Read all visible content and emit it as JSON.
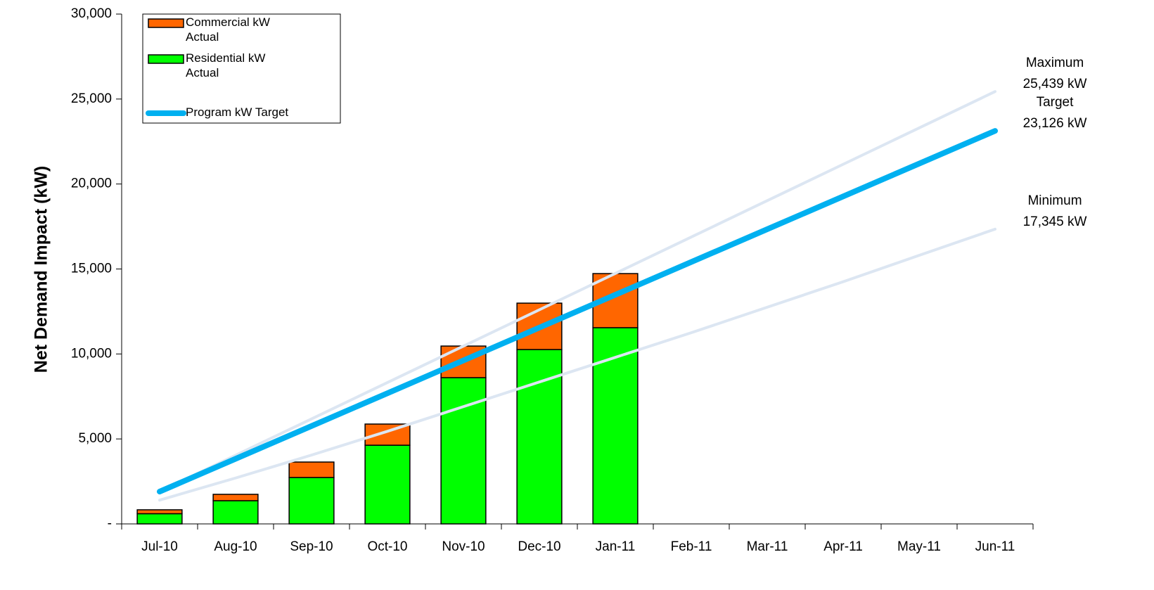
{
  "chart_data": {
    "type": "stacked_bar_line",
    "y_label": "Net Demand Impact (kW)",
    "categories": [
      "Jul-10",
      "Aug-10",
      "Sep-10",
      "Oct-10",
      "Nov-10",
      "Dec-10",
      "Jan-11",
      "Feb-11",
      "Mar-11",
      "Apr-11",
      "May-11",
      "Jun-11"
    ],
    "ylim": [
      0,
      30000
    ],
    "yticks": [
      {
        "value": 0,
        "label": "-"
      },
      {
        "value": 5000,
        "label": "5,000"
      },
      {
        "value": 10000,
        "label": "10,000"
      },
      {
        "value": 15000,
        "label": "15,000"
      },
      {
        "value": 20000,
        "label": "20,000"
      },
      {
        "value": 25000,
        "label": "25,000"
      },
      {
        "value": 30000,
        "label": "30,000"
      }
    ],
    "bars": [
      {
        "name": "Residential kW Actual",
        "color": "#00ff00",
        "values": [
          600,
          1365,
          2730,
          4630,
          8605,
          10260,
          11545,
          null,
          null,
          null,
          null,
          null
        ]
      },
      {
        "name": "Commercial kW Actual",
        "color": "#ff6600",
        "values": [
          230,
          375,
          910,
          1245,
          1860,
          2730,
          3185,
          null,
          null,
          null,
          null,
          null
        ]
      }
    ],
    "legend_order": [
      1,
      0
    ],
    "lines": [
      {
        "end_label": "Maximum",
        "color": "#dce6f2",
        "width": 4,
        "values": [
          1900,
          4040,
          6180,
          8320,
          10460,
          12600,
          14740,
          16880,
          19020,
          21160,
          23300,
          25439
        ],
        "value_labels": [
          null,
          null,
          null,
          null,
          null,
          null,
          null,
          null,
          null,
          null,
          null,
          "25,439 kW"
        ]
      },
      {
        "end_label": "Minimum",
        "color": "#dce6f2",
        "width": 4,
        "values": [
          1400,
          2700,
          4050,
          5450,
          6900,
          8350,
          9800,
          11250,
          12750,
          14250,
          15800,
          17345
        ],
        "value_labels": [
          null,
          null,
          null,
          null,
          null,
          null,
          null,
          null,
          null,
          null,
          null,
          "17,345 kW"
        ]
      },
      {
        "name": "Program kW Target",
        "end_label": "Target",
        "color": "#00b0f0",
        "width": 8,
        "values": [
          1900,
          3830,
          5760,
          7690,
          9620,
          11550,
          13480,
          15410,
          17340,
          19270,
          21200,
          23126
        ],
        "value_labels": [
          null,
          null,
          null,
          null,
          null,
          null,
          null,
          null,
          null,
          null,
          null,
          "23,126 kW"
        ]
      }
    ]
  }
}
